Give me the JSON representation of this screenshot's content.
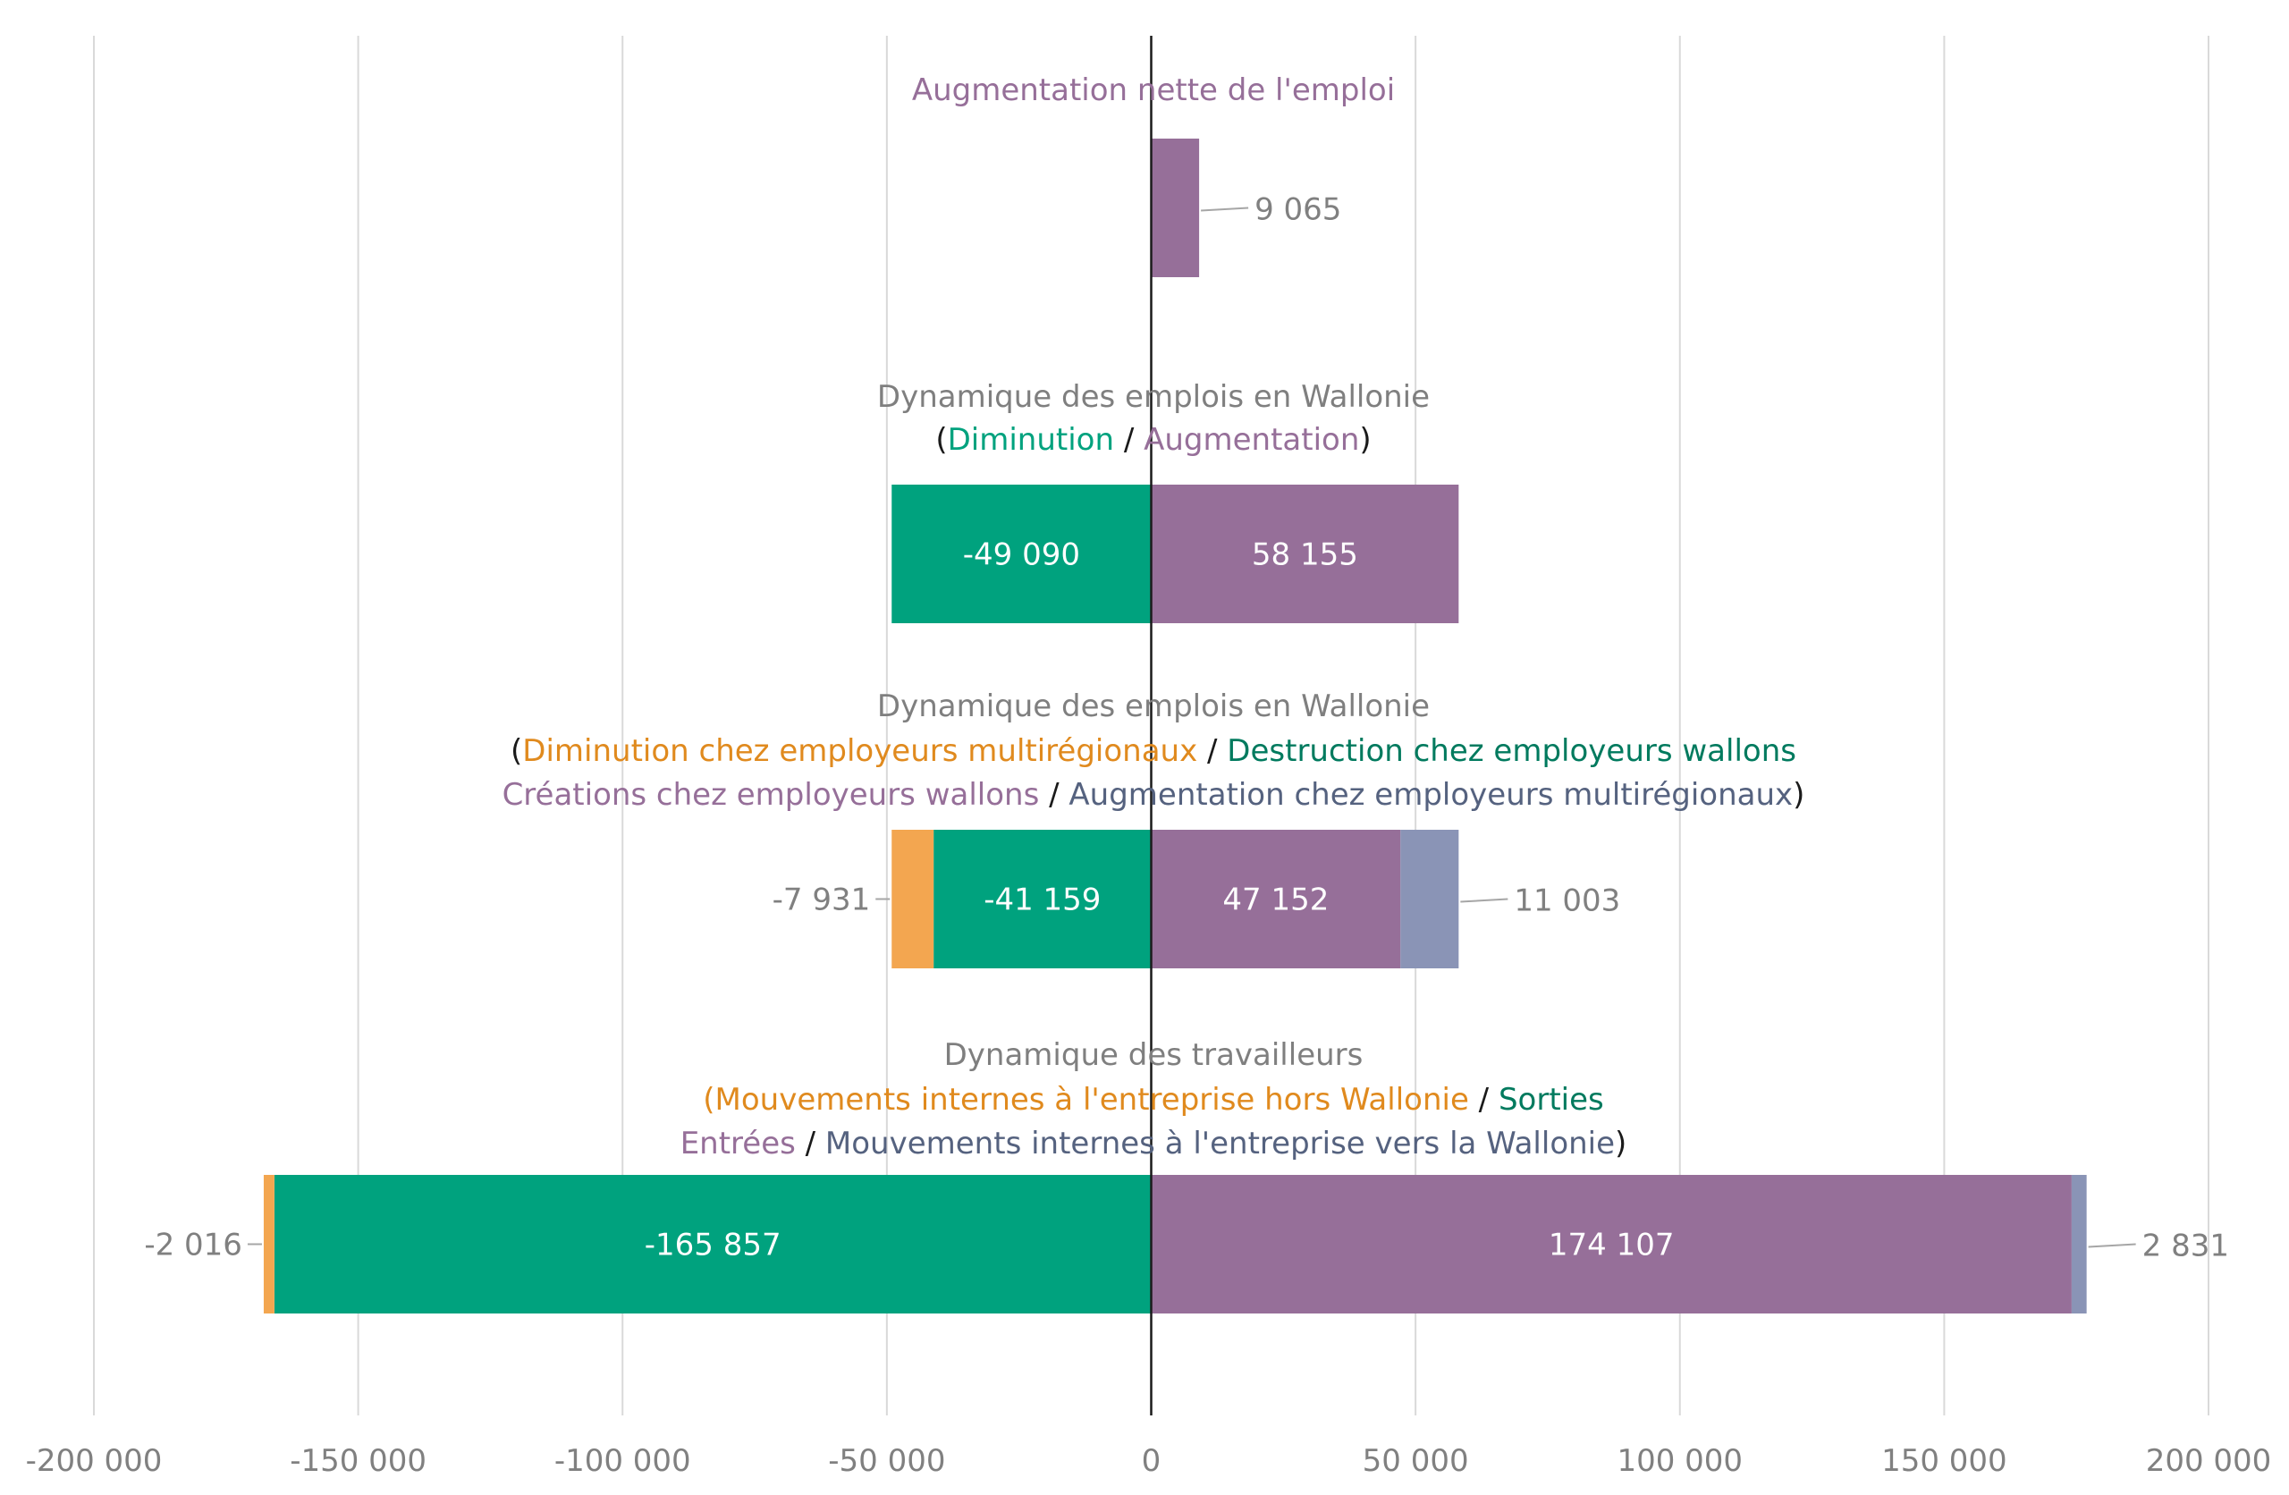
{
  "chart_data": {
    "type": "bar",
    "orientation": "horizontal",
    "stacked": true,
    "xlim": [
      -200000,
      200000
    ],
    "xticks": [
      -200000,
      -150000,
      -100000,
      -50000,
      0,
      50000,
      100000,
      150000,
      200000
    ],
    "xtick_labels": [
      "-200 000",
      "-150 000",
      "-100 000",
      "-50 000",
      "0",
      "50 000",
      "100 000",
      "150 000",
      "200 000"
    ],
    "grid": true,
    "colors": {
      "purple": "#966f99",
      "green": "#00a27e",
      "orange": "#f3a650",
      "blue": "#8a94b6",
      "title_grey": "#7f7f7f",
      "title_orange": "#e08a1e",
      "title_green": "#00a27e",
      "title_purple": "#966f99",
      "title_blue": "#55627f",
      "title_black": "#1a1a1a",
      "darkgreen": "#007a5e"
    },
    "groups": [
      {
        "title_lines": [
          [
            {
              "text": "Augmentation nette de l'emploi",
              "color": "purple"
            }
          ]
        ],
        "segments": [
          {
            "value": 9065,
            "color": "purple",
            "label": "9 065",
            "label_position": "outside-right"
          }
        ]
      },
      {
        "title_lines": [
          [
            {
              "text": "Dynamique des emplois en Wallonie",
              "color": "grey"
            }
          ],
          [
            {
              "text": "(",
              "color": "black"
            },
            {
              "text": "Diminution",
              "color": "green"
            },
            {
              "text": " / ",
              "color": "black"
            },
            {
              "text": "Augmentation",
              "color": "purple"
            },
            {
              "text": ")",
              "color": "black"
            }
          ]
        ],
        "segments": [
          {
            "value": -49090,
            "color": "green",
            "label": "-49 090",
            "label_position": "inside"
          },
          {
            "value": 58155,
            "color": "purple",
            "label": "58 155",
            "label_position": "inside"
          }
        ]
      },
      {
        "title_lines": [
          [
            {
              "text": "Dynamique des emplois en Wallonie",
              "color": "grey"
            }
          ],
          [
            {
              "text": "(",
              "color": "black"
            },
            {
              "text": "Diminution chez employeurs multirégionaux",
              "color": "orange"
            },
            {
              "text": " / ",
              "color": "black"
            },
            {
              "text": "Destruction chez employeurs wallons",
              "color": "darkgreen"
            }
          ],
          [
            {
              "text": "Créations chez employeurs wallons",
              "color": "purple"
            },
            {
              "text": " / ",
              "color": "black"
            },
            {
              "text": "Augmentation chez employeurs multirégionaux",
              "color": "blue"
            },
            {
              "text": ")",
              "color": "black"
            }
          ]
        ],
        "segments": [
          {
            "value": -41159,
            "color": "green",
            "label": "-41 159",
            "label_position": "inside"
          },
          {
            "value": -7931,
            "color": "orange",
            "label": "-7 931",
            "label_position": "outside-left"
          },
          {
            "value": 47152,
            "color": "purple",
            "label": "47 152",
            "label_position": "inside"
          },
          {
            "value": 11003,
            "color": "blue",
            "label": "11 003",
            "label_position": "outside-right"
          }
        ]
      },
      {
        "title_lines": [
          [
            {
              "text": "Dynamique des travailleurs",
              "color": "grey"
            }
          ],
          [
            {
              "text": "(Mouvements internes à l'entreprise hors Wallonie",
              "color": "orange"
            },
            {
              "text": " / ",
              "color": "black"
            },
            {
              "text": "Sorties",
              "color": "darkgreen"
            }
          ],
          [
            {
              "text": "Entrées",
              "color": "purple"
            },
            {
              "text": " / ",
              "color": "black"
            },
            {
              "text": "Mouvements internes à l'entreprise vers la Wallonie",
              "color": "blue"
            },
            {
              "text": ")",
              "color": "black"
            }
          ]
        ],
        "segments": [
          {
            "value": -165857,
            "color": "green",
            "label": "-165 857",
            "label_position": "inside"
          },
          {
            "value": -2016,
            "color": "orange",
            "label": "-2 016",
            "label_position": "outside-left"
          },
          {
            "value": 174107,
            "color": "purple",
            "label": "174 107",
            "label_position": "inside"
          },
          {
            "value": 2831,
            "color": "blue",
            "label": "2 831",
            "label_position": "outside-right"
          }
        ]
      }
    ]
  }
}
